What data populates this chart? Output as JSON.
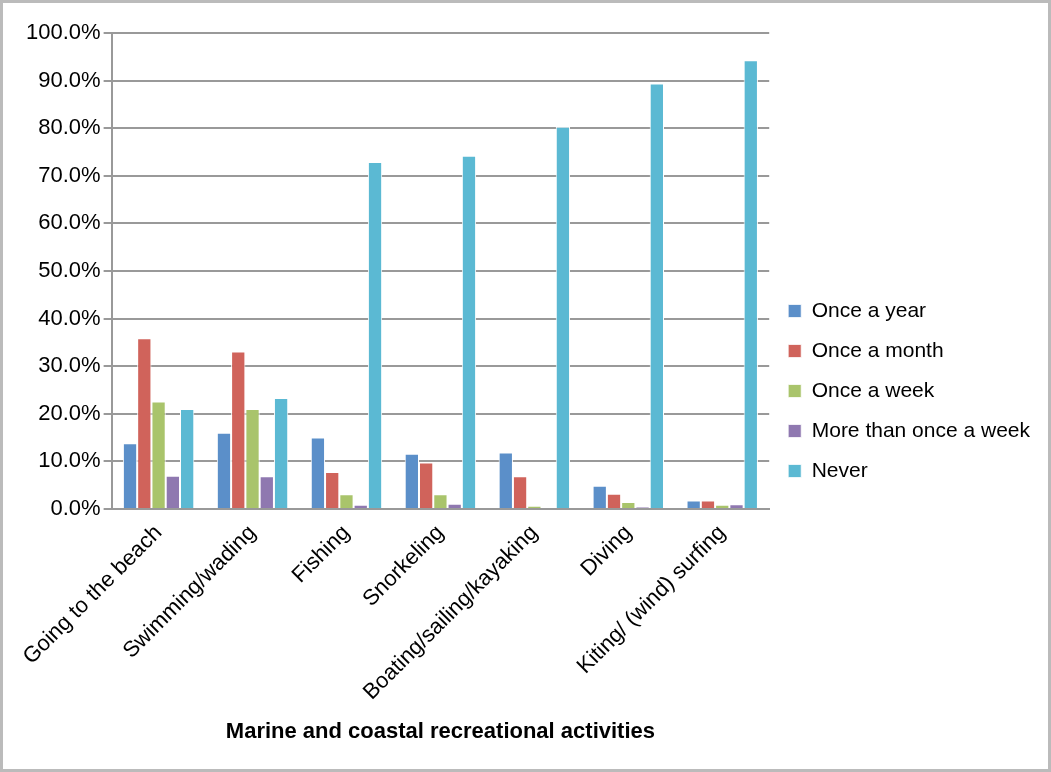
{
  "chart_data": {
    "type": "bar",
    "xlabel": "Marine and coastal recreational activities",
    "categories": [
      "Going to the beach",
      "Swimming/wading",
      "Fishing",
      "Snorkeling",
      "Boating/sailing/kayaking",
      "Diving",
      "Kiting/ (wind) surfing"
    ],
    "series": [
      {
        "name": "Once a year",
        "color": "#5b8fc9",
        "values": [
          13.8,
          16.0,
          15.0,
          11.6,
          11.9,
          4.9,
          1.8
        ]
      },
      {
        "name": "Once a month",
        "color": "#d0635b",
        "values": [
          35.9,
          33.1,
          7.8,
          9.8,
          6.9,
          3.2,
          1.8
        ]
      },
      {
        "name": "Once a week",
        "color": "#a9c46b",
        "values": [
          22.6,
          21.0,
          3.1,
          3.1,
          0.7,
          1.5,
          0.9
        ]
      },
      {
        "name": "More than once a week",
        "color": "#8f78b0",
        "values": [
          7.0,
          6.9,
          0.9,
          1.1,
          0.2,
          0.4,
          1.0
        ]
      },
      {
        "name": "Never",
        "color": "#5bb9d3",
        "values": [
          21.0,
          23.3,
          72.9,
          74.2,
          80.3,
          89.4,
          94.3
        ]
      }
    ],
    "ylim": [
      0,
      100
    ],
    "yticks": [
      {
        "value": 0,
        "label": "0.0%"
      },
      {
        "value": 10,
        "label": "10.0%"
      },
      {
        "value": 20,
        "label": "20.0%"
      },
      {
        "value": 30,
        "label": "30.0%"
      },
      {
        "value": 40,
        "label": "40.0%"
      },
      {
        "value": 50,
        "label": "50.0%"
      },
      {
        "value": 60,
        "label": "60.0%"
      },
      {
        "value": 70,
        "label": "70.0%"
      },
      {
        "value": 80,
        "label": "80.0%"
      },
      {
        "value": 90,
        "label": "90.0%"
      },
      {
        "value": 100,
        "label": "100.0%"
      }
    ],
    "grid": "y",
    "legend": "right"
  }
}
